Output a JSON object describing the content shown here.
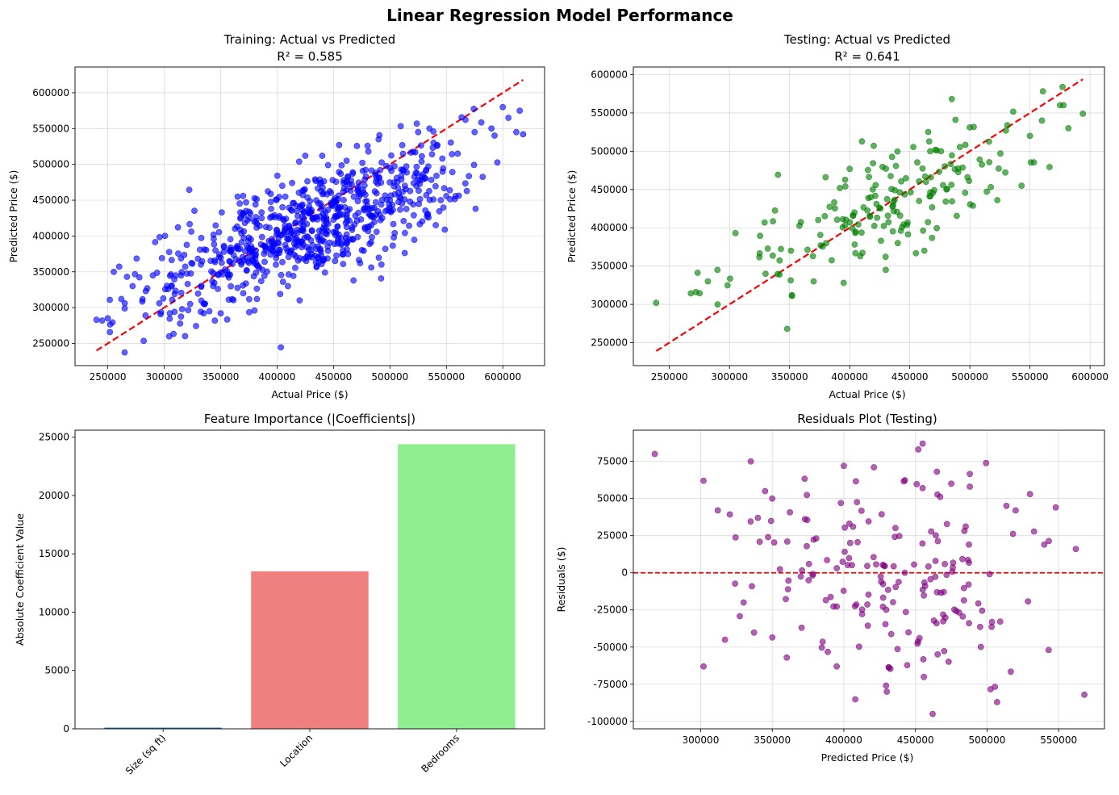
{
  "figure_title": "Linear Regression Model Performance",
  "chart_data": [
    {
      "id": "train",
      "type": "scatter",
      "title": "Training: Actual vs Predicted",
      "subtitle": "R² = 0.585",
      "xlabel": "Actual Price ($)",
      "ylabel": "Predicted Price ($)",
      "xlim": [
        221000,
        637000
      ],
      "ylim": [
        219000,
        636000
      ],
      "xticks": [
        250000,
        300000,
        350000,
        400000,
        450000,
        500000,
        550000,
        600000
      ],
      "yticks": [
        250000,
        300000,
        350000,
        400000,
        450000,
        500000,
        550000,
        600000
      ],
      "grid": true,
      "color": "#0000ff",
      "point_count": 800,
      "reference_line": {
        "from": [
          240000,
          240000
        ],
        "to": [
          618000,
          618000
        ],
        "style": "dashed",
        "color": "#ff0000"
      },
      "trend": {
        "intercept": 162000,
        "slope": 0.585,
        "spread": 38000
      },
      "sample_points": [
        [
          240000,
          283000
        ],
        [
          245000,
          282000
        ],
        [
          250000,
          285000
        ],
        [
          262000,
          312000
        ],
        [
          265000,
          306000
        ],
        [
          267000,
          343000
        ],
        [
          272000,
          330000
        ],
        [
          285000,
          327000
        ],
        [
          290000,
          345000
        ],
        [
          298000,
          369000
        ],
        [
          305000,
          292000
        ],
        [
          315000,
          345000
        ],
        [
          323000,
          305000
        ],
        [
          335000,
          292000
        ],
        [
          340000,
          295000
        ],
        [
          351000,
          433000
        ],
        [
          365000,
          455000
        ],
        [
          370000,
          320000
        ],
        [
          380000,
          296000
        ],
        [
          386000,
          337000
        ],
        [
          425000,
          512000
        ],
        [
          420000,
          310000
        ],
        [
          440000,
          512000
        ],
        [
          455000,
          527000
        ],
        [
          490000,
          535000
        ],
        [
          525000,
          545000
        ],
        [
          535000,
          550000
        ],
        [
          545000,
          450000
        ],
        [
          560000,
          515000
        ],
        [
          575000,
          545000
        ],
        [
          590000,
          550000
        ],
        [
          600000,
          580000
        ],
        [
          605000,
          565000
        ],
        [
          612000,
          545000
        ],
        [
          618000,
          542000
        ],
        [
          615000,
          575000
        ]
      ]
    },
    {
      "id": "test",
      "type": "scatter",
      "title": "Testing: Actual vs Predicted",
      "subtitle": "R² = 0.641",
      "xlabel": "Actual Price ($)",
      "ylabel": "Predicted Price ($)",
      "xlim": [
        220000,
        612000
      ],
      "ylim": [
        220000,
        610000
      ],
      "xticks": [
        250000,
        300000,
        350000,
        400000,
        450000,
        500000,
        550000,
        600000
      ],
      "yticks": [
        250000,
        300000,
        350000,
        400000,
        450000,
        500000,
        550000,
        600000
      ],
      "grid": true,
      "color": "#008000",
      "point_count": 200,
      "reference_line": {
        "from": [
          239000,
          239000
        ],
        "to": [
          594000,
          594000
        ],
        "style": "dashed",
        "color": "#ff0000"
      },
      "trend": {
        "intercept": 152000,
        "slope": 0.641,
        "spread": 32000
      },
      "sample_points": [
        [
          239000,
          302000
        ],
        [
          272000,
          316000
        ],
        [
          282000,
          330000
        ],
        [
          290000,
          345000
        ],
        [
          305000,
          393000
        ],
        [
          330000,
          340000
        ],
        [
          348000,
          268000
        ],
        [
          352000,
          311000
        ],
        [
          370000,
          330000
        ],
        [
          380000,
          466000
        ],
        [
          395000,
          328000
        ],
        [
          400000,
          477000
        ],
        [
          420000,
          507000
        ],
        [
          430000,
          345000
        ],
        [
          440000,
          380000
        ],
        [
          467000,
          500000
        ],
        [
          476000,
          500000
        ],
        [
          485000,
          568000
        ],
        [
          488000,
          541000
        ],
        [
          500000,
          531000
        ],
        [
          530000,
          527000
        ],
        [
          543000,
          455000
        ],
        [
          550000,
          520000
        ],
        [
          560000,
          540000
        ],
        [
          575000,
          560000
        ],
        [
          578000,
          560000
        ],
        [
          594000,
          549000
        ],
        [
          582000,
          530000
        ]
      ]
    },
    {
      "id": "importance",
      "type": "bar",
      "title": "Feature Importance (|Coefficients|)",
      "xlabel": "",
      "ylabel": "Absolute Coefficient Value",
      "categories": [
        "Size (sq ft)",
        "Location",
        "Bedrooms"
      ],
      "values": [
        100,
        13500,
        24400
      ],
      "colors": [
        "#1f77b4",
        "#f08080",
        "#90ee90"
      ],
      "ylim": [
        0,
        25600
      ],
      "yticks": [
        0,
        5000,
        10000,
        15000,
        20000,
        25000
      ],
      "grid": false
    },
    {
      "id": "residuals",
      "type": "scatter",
      "title": "Residuals Plot (Testing)",
      "xlabel": "Predicted Price ($)",
      "ylabel": "Residuals ($)",
      "xlim": [
        253000,
        582000
      ],
      "ylim": [
        -105000,
        96000
      ],
      "xticks": [
        300000,
        350000,
        400000,
        450000,
        500000,
        550000
      ],
      "yticks": [
        -100000,
        -75000,
        -50000,
        -25000,
        0,
        25000,
        50000,
        75000
      ],
      "grid": true,
      "color": "#800080",
      "point_count": 200,
      "zero_line": {
        "y": 0,
        "style": "dashed",
        "color": "#ff0000"
      },
      "sample_points": [
        [
          268000,
          80000
        ],
        [
          302000,
          62000
        ],
        [
          302000,
          -63000
        ],
        [
          312000,
          42000
        ],
        [
          317000,
          -45000
        ],
        [
          330000,
          -20000
        ],
        [
          335000,
          75000
        ],
        [
          340000,
          37000
        ],
        [
          345000,
          55000
        ],
        [
          350000,
          50000
        ],
        [
          395000,
          -63000
        ],
        [
          400000,
          72000
        ],
        [
          421000,
          71000
        ],
        [
          430000,
          -80000
        ],
        [
          455000,
          87000
        ],
        [
          455000,
          57000
        ],
        [
          465000,
          68000
        ],
        [
          462000,
          -95000
        ],
        [
          475000,
          60000
        ],
        [
          488000,
          58000
        ],
        [
          507000,
          -87000
        ],
        [
          520000,
          42000
        ],
        [
          530000,
          53000
        ],
        [
          540000,
          19000
        ],
        [
          543000,
          -52000
        ],
        [
          548000,
          44000
        ],
        [
          562000,
          16000
        ],
        [
          568000,
          -82000
        ]
      ]
    }
  ]
}
